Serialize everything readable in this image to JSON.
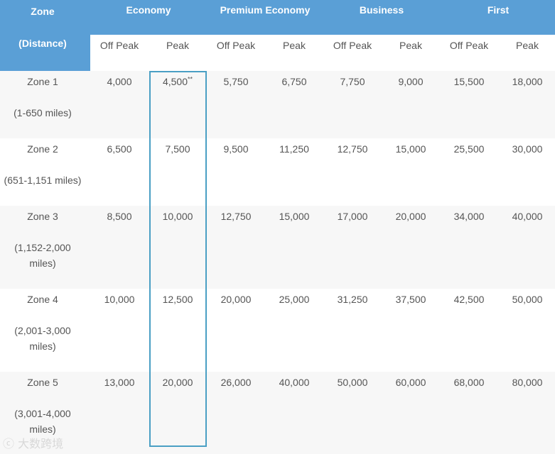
{
  "header": {
    "zone_label": "Zone",
    "distance_label": "(Distance)",
    "classes": [
      "Economy",
      "Premium Economy",
      "Business",
      "First"
    ],
    "off_peak_label": "Off Peak",
    "peak_label": "Peak"
  },
  "rows": [
    {
      "zone": "Zone 1",
      "distance": [
        "(1-650 miles)"
      ],
      "values": [
        "4,000",
        "4,500",
        "5,750",
        "6,750",
        "7,750",
        "9,000",
        "15,500",
        "18,000"
      ],
      "footnote": "**"
    },
    {
      "zone": "Zone 2",
      "distance": [
        "(651-1,151 miles)"
      ],
      "values": [
        "6,500",
        "7,500",
        "9,500",
        "11,250",
        "12,750",
        "15,000",
        "25,500",
        "30,000"
      ]
    },
    {
      "zone": "Zone 3",
      "distance": [
        "(1,152-2,000",
        "miles)"
      ],
      "values": [
        "8,500",
        "10,000",
        "12,750",
        "15,000",
        "17,000",
        "20,000",
        "34,000",
        "40,000"
      ]
    },
    {
      "zone": "Zone 4",
      "distance": [
        "(2,001-3,000",
        "miles)"
      ],
      "values": [
        "10,000",
        "12,500",
        "20,000",
        "25,000",
        "31,250",
        "37,500",
        "42,500",
        "50,000"
      ]
    },
    {
      "zone": "Zone 5",
      "distance": [
        "(3,001-4,000",
        "miles)"
      ],
      "values": [
        "13,000",
        "20,000",
        "26,000",
        "40,000",
        "50,000",
        "60,000",
        "68,000",
        "80,000"
      ]
    }
  ],
  "watermark": "大数跨境",
  "colors": {
    "header_blue": "#5a9fd6",
    "highlight_border": "#4a9fc4",
    "alt_row": "#f7f7f7"
  }
}
